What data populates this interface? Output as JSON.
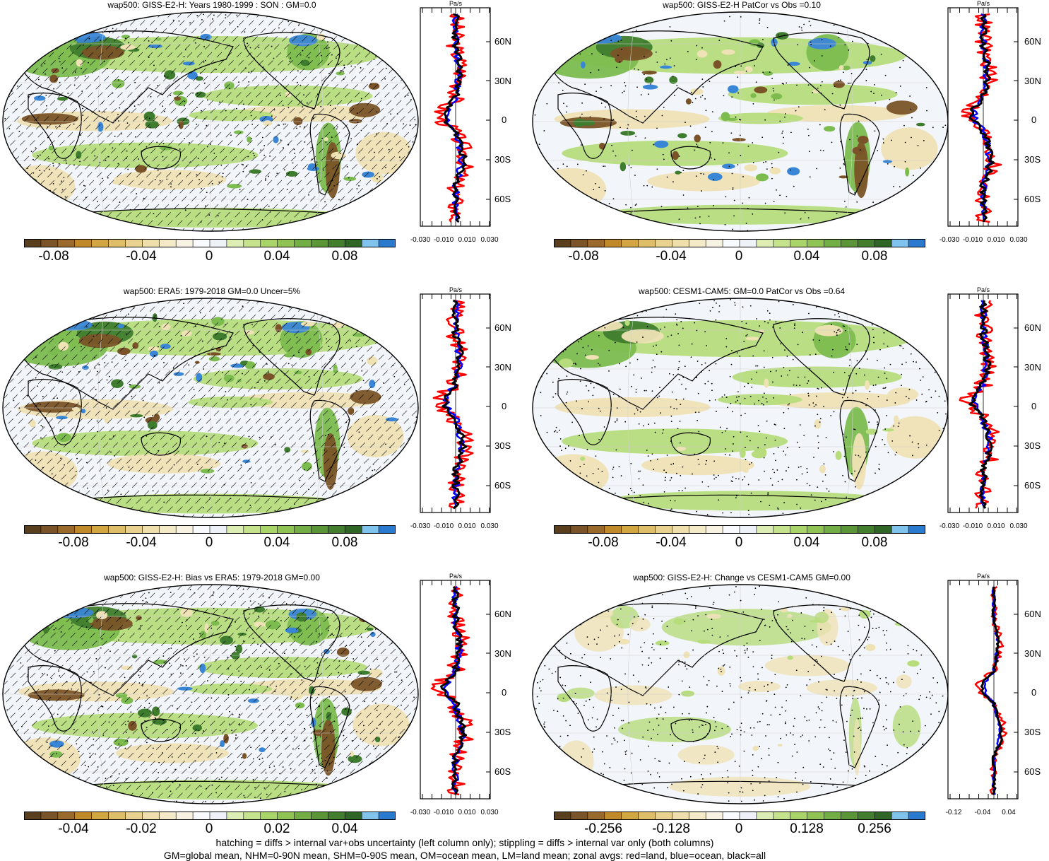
{
  "panels": [
    {
      "id": "p1",
      "title": "wap500: GISS-E2-H: Years 1980-1999 : SON : GM=0.0",
      "hatching": true,
      "stipple": "medium",
      "colorbar_labels": [
        "-0.08",
        "-0.04",
        "0",
        "0.04",
        "0.08"
      ],
      "zonal_unit": "Pa/s",
      "zonal_y_labels": [
        "60N",
        "30N",
        "0",
        "30S",
        "60S"
      ],
      "zonal_x_labels": [
        "-0.030",
        "-0.010",
        "0.010",
        "0.030"
      ]
    },
    {
      "id": "p2",
      "title": "wap500: GISS-E2-H PatCor vs Obs =0.10",
      "hatching": false,
      "stipple": "medium",
      "colorbar_labels": [
        "-0.08",
        "-0.04",
        "0",
        "0.04",
        "0.08"
      ],
      "zonal_unit": "Pa/s",
      "zonal_y_labels": [
        "60N",
        "30N",
        "0",
        "30S",
        "60S"
      ],
      "zonal_x_labels": [
        "-0.030",
        "-0.010",
        "0.010",
        "0.030"
      ]
    },
    {
      "id": "p3",
      "title": "wap500: ERA5: 1979-2018 GM=0.0 Uncer=5%",
      "hatching": true,
      "stipple": "light",
      "colorbar_labels": [
        "-0.08",
        "-0.04",
        "0",
        "0.04",
        "0.08"
      ],
      "zonal_unit": "Pa/s",
      "zonal_y_labels": [
        "60N",
        "30N",
        "0",
        "30S",
        "60S"
      ],
      "zonal_x_labels": [
        "-0.030",
        "-0.010",
        "0.010",
        "0.030"
      ]
    },
    {
      "id": "p4",
      "title": "wap500: CESM1-CAM5: GM=0.0 PatCor vs Obs =0.64",
      "hatching": false,
      "stipple": "heavy",
      "colorbar_labels": [
        "-0.08",
        "-0.04",
        "0",
        "0.04",
        "0.08"
      ],
      "zonal_unit": "Pa/s",
      "zonal_y_labels": [
        "60N",
        "30N",
        "0",
        "30S",
        "60S"
      ],
      "zonal_x_labels": [
        "-0.030",
        "-0.010",
        "0.010",
        "0.030"
      ]
    },
    {
      "id": "p5",
      "title": "wap500: GISS-E2-H: Bias vs ERA5: 1979-2018  GM=0.00",
      "hatching": true,
      "stipple": "medium",
      "colorbar_labels": [
        "-0.04",
        "-0.02",
        "0",
        "0.02",
        "0.04"
      ],
      "zonal_unit": "Pa/s",
      "zonal_y_labels": [
        "60N",
        "30N",
        "0",
        "30S",
        "60S"
      ],
      "zonal_x_labels": [
        "-0.030",
        "-0.010",
        "0.010",
        "0.030"
      ]
    },
    {
      "id": "p6",
      "title": "wap500: GISS-E2-H: Change vs CESM1-CAM5 GM=0.00",
      "hatching": false,
      "stipple": "heavy",
      "colorbar_labels": [
        "-0.256",
        "-0.128",
        "0",
        "0.128",
        "0.256"
      ],
      "zonal_unit": "Pa/s",
      "zonal_y_labels": [
        "60N",
        "30N",
        "0",
        "30S",
        "60S"
      ],
      "zonal_x_labels": [
        "-0.12",
        "-0.04",
        "0.04"
      ]
    }
  ],
  "colorbar_colors": [
    "#5a3f1f",
    "#7a5428",
    "#9a6a2c",
    "#c08a2a",
    "#d2a640",
    "#dfbe6a",
    "#e9d28f",
    "#efdfac",
    "#f4eac8",
    "#f7f2e1",
    "#f8fafd",
    "#eef2f8",
    "#ddeeb4",
    "#c4e38c",
    "#a9d46a",
    "#8fc354",
    "#73ad45",
    "#5a9638",
    "#437e2e",
    "#2f6626",
    "#80c4ee",
    "#2a7ad0"
  ],
  "map_colors": {
    "ocean_base": "#f2f5fa",
    "light_tan": "#efe2b5",
    "light_green": "#b6dc7c",
    "green": "#7cbc4f",
    "dark_green": "#3f7d2e",
    "brown": "#7a5428",
    "blue": "#3a86d6"
  },
  "zonal_colors": {
    "land": "#ff0000",
    "ocean": "#0000ff",
    "all": "#000000"
  },
  "footer": {
    "line1": "hatching = diffs > internal var+obs uncertainty (left column only); stippling = diffs > internal var only (both columns)",
    "line2": "GM=global mean, NHM=0-90N mean, SHM=0-90S mean, OM=ocean mean, LM=land mean; zonal avgs: red=land, blue=ocean, black=all"
  }
}
